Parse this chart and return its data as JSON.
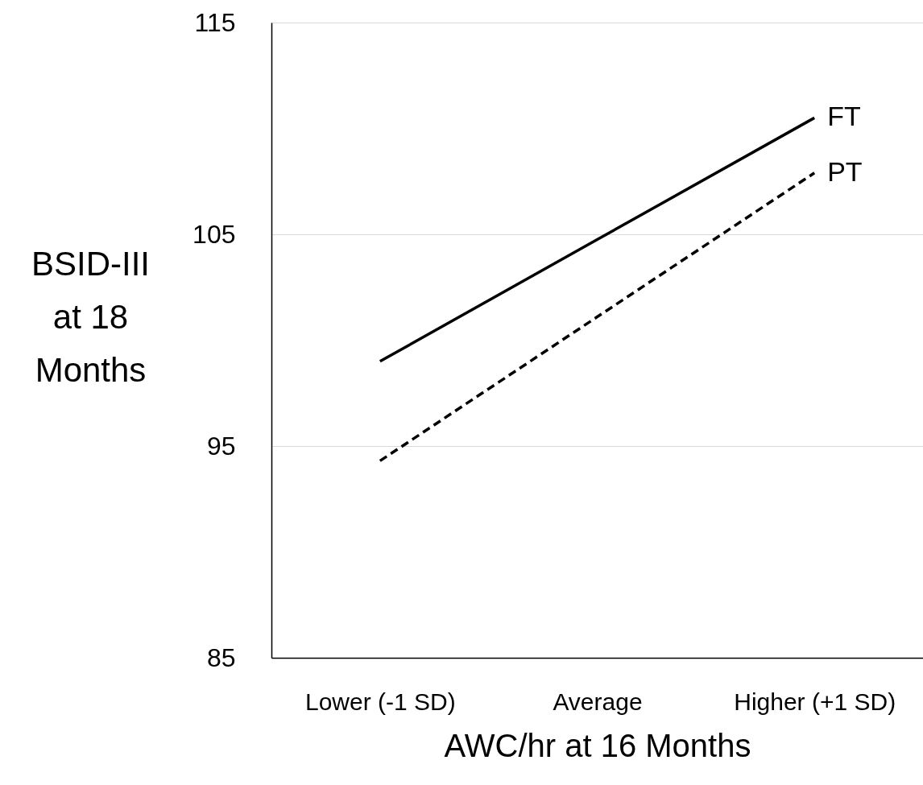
{
  "chart_data": {
    "type": "line",
    "xlabel": "AWC/hr at 16 Months",
    "ylabel": "BSID-III at 18 Months",
    "categories": [
      "Lower (-1 SD)",
      "Average",
      "Higher (+1 SD)"
    ],
    "series": [
      {
        "name": "FT",
        "color": "#000000",
        "line_style": "solid",
        "values": [
          99.0,
          104.75,
          110.5
        ]
      },
      {
        "name": "PT",
        "color": "#000000",
        "line_style": "dashed",
        "values": [
          94.3,
          101.1,
          107.9
        ]
      }
    ],
    "ylim": [
      85,
      115
    ],
    "yticks": [
      85,
      95,
      105,
      115
    ],
    "grid": "y"
  }
}
